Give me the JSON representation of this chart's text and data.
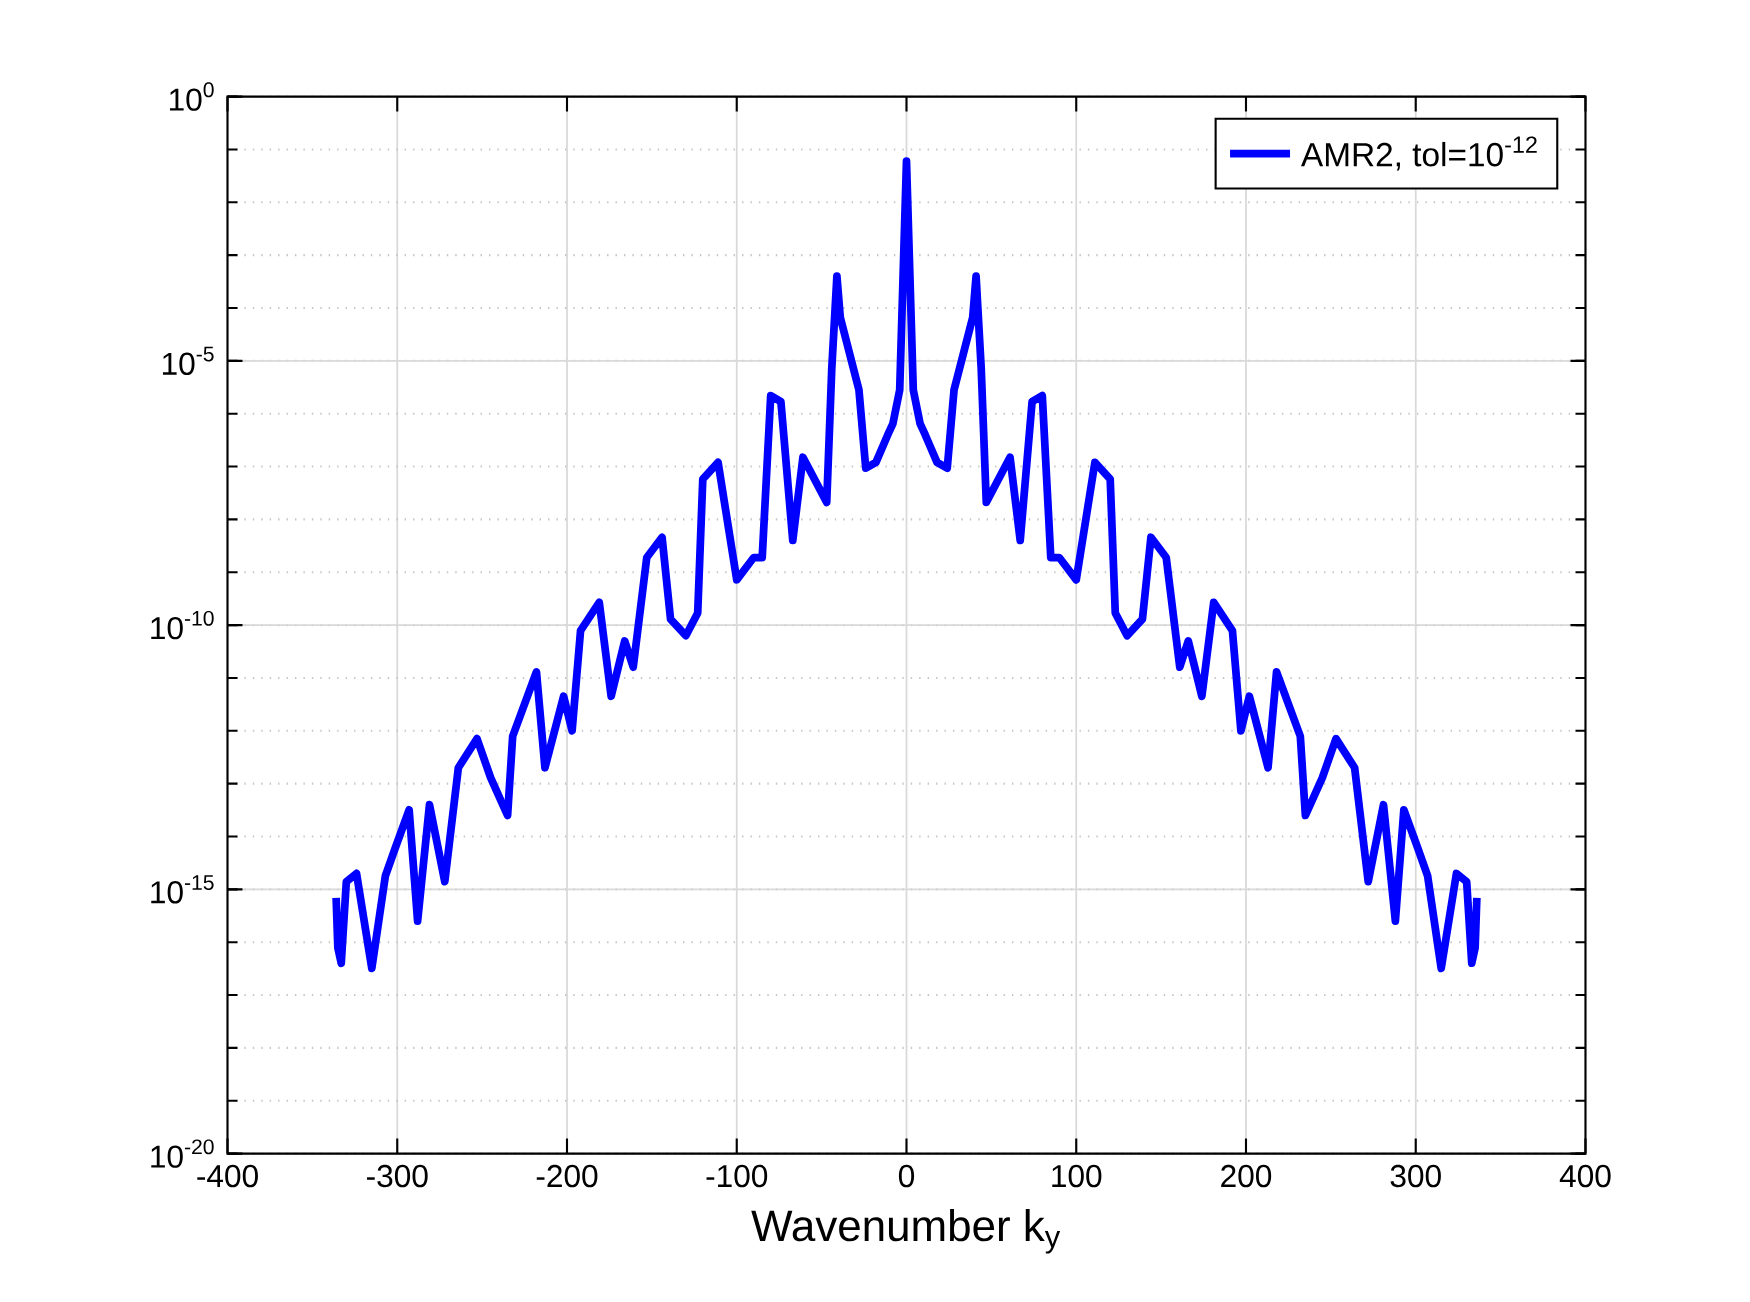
{
  "chart_data": {
    "type": "line",
    "xlabel": "Wavenumber k$_{y}$",
    "log": "y",
    "grid": true,
    "legend": "top right",
    "line_style": "solid",
    "marker": "none",
    "xlim": [
      -400,
      400
    ],
    "xticks": [
      -400,
      -300,
      -200,
      -100,
      0,
      100,
      200,
      300,
      400
    ],
    "ylim": [
      1e-20,
      1
    ],
    "yticks": [
      {
        "value": 1e-20,
        "label": "10$^{-20}$"
      },
      {
        "value": 1e-15,
        "label": "10$^{-15}$"
      },
      {
        "value": 1e-10,
        "label": "10$^{-10}$"
      },
      {
        "value": 1e-05,
        "label": "10$^{-5}$"
      },
      {
        "value": 1,
        "label": "10$^{0}$"
      }
    ],
    "series": [
      {
        "name": "AMR2, tol=10$^{-12}$",
        "color": "#0000ff",
        "x": [
          -336,
          -335,
          -333,
          -330,
          -324,
          -315,
          -307,
          -301,
          -293,
          -288,
          -281,
          -272,
          -264,
          -253,
          -245,
          -235,
          -232,
          -218,
          -213,
          -202,
          -197,
          -192,
          -181,
          -174,
          -166,
          -161,
          -153,
          -144,
          -139,
          -130,
          -123,
          -120,
          -111,
          -100,
          -90,
          -85,
          -80,
          -74,
          -67,
          -61,
          -47,
          -44,
          -41,
          -39,
          -28,
          -24,
          -18,
          -11,
          -8,
          -4,
          0,
          4,
          8,
          11,
          18,
          24,
          28,
          39,
          41,
          44,
          47,
          61,
          67,
          74,
          80,
          85,
          90,
          100,
          111,
          120,
          123,
          130,
          139,
          144,
          153,
          161,
          166,
          174,
          181,
          192,
          197,
          202,
          213,
          218,
          232,
          235,
          245,
          253,
          264,
          272,
          281,
          288,
          293,
          301,
          307,
          315,
          324,
          330,
          333,
          335,
          336
        ],
        "values": [
          6.9e-16,
          7.9e-17,
          4e-17,
          1.4e-15,
          2e-15,
          3.2e-17,
          1.8e-15,
          6.3e-15,
          3.2e-14,
          2.5e-16,
          4e-14,
          1.4e-15,
          2e-13,
          7.1e-13,
          1.3e-13,
          2.5e-14,
          7.9e-13,
          1.3e-11,
          2e-13,
          4.5e-12,
          1e-12,
          7.9e-11,
          2.7e-10,
          4.5e-12,
          5e-11,
          1.6e-11,
          1.9e-09,
          4.6e-09,
          1.3e-10,
          6.3e-11,
          1.7e-10,
          5.8e-08,
          1.2e-07,
          7.2e-10,
          1.9e-09,
          1.9e-09,
          2.2e-06,
          1.7e-06,
          4e-09,
          1.5e-07,
          2.1e-08,
          7.4e-06,
          0.0004,
          6.6e-05,
          2.8e-06,
          9.3e-08,
          1.2e-07,
          4e-07,
          6.5e-07,
          2.8e-06,
          0.06,
          2.8e-06,
          6.5e-07,
          4e-07,
          1.2e-07,
          9.3e-08,
          2.8e-06,
          6.6e-05,
          0.0004,
          7.4e-06,
          2.1e-08,
          1.5e-07,
          4e-09,
          1.7e-06,
          2.2e-06,
          1.9e-09,
          1.9e-09,
          7.2e-10,
          1.2e-07,
          5.8e-08,
          1.7e-10,
          6.3e-11,
          1.3e-10,
          4.6e-09,
          1.9e-09,
          1.6e-11,
          5e-11,
          4.5e-12,
          2.7e-10,
          7.9e-11,
          1e-12,
          4.5e-12,
          2e-13,
          1.3e-11,
          7.9e-13,
          2.5e-14,
          1.3e-13,
          7.1e-13,
          2e-13,
          1.4e-15,
          4e-14,
          2.5e-16,
          3.2e-14,
          6.3e-15,
          1.8e-15,
          3.2e-17,
          2e-15,
          1.4e-15,
          4e-17,
          7.9e-17,
          6.9e-16
        ]
      }
    ]
  }
}
